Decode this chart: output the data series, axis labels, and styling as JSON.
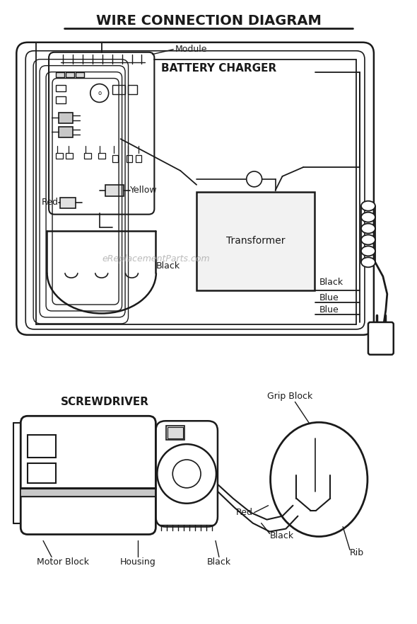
{
  "title": "WIRE CONNECTION DIAGRAM",
  "bg_color": "#ffffff",
  "line_color": "#1a1a1a",
  "label_color": "#1a1a1a",
  "watermark": "eReplacementParts.com",
  "battery_charger_label": "BATTERY CHARGER",
  "transformer_label": "Transformer",
  "screwdriver_label": "SCREWDRIVER",
  "module_label": "Module",
  "yellow_label": "Yellow",
  "red_label": "Red",
  "black_label": "Black",
  "black_label2": "Black",
  "blue_label1": "Blue",
  "blue_label2": "Blue",
  "grip_block_label": "Grip Block",
  "motor_block_label": "Motor Block",
  "housing_label": "Housing",
  "rib_label": "Rib",
  "figsize": [
    5.9,
    8.81
  ],
  "dpi": 100
}
